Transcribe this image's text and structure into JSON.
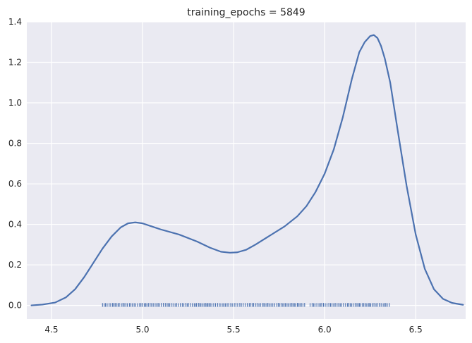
{
  "chart_data": {
    "type": "line",
    "title": "training_epochs = 5849",
    "xlabel": "",
    "ylabel": "",
    "xlim": [
      4.3645,
      6.7742
    ],
    "ylim": [
      -0.0675,
      1.4
    ],
    "xticks": [
      "4.5",
      "5.0",
      "5.5",
      "6.0",
      "6.5"
    ],
    "xtick_values": [
      4.5,
      5.0,
      5.5,
      6.0,
      6.5
    ],
    "yticks": [
      "0.0",
      "0.2",
      "0.4",
      "0.6",
      "0.8",
      "1.0",
      "1.2",
      "1.4"
    ],
    "ytick_values": [
      0.0,
      0.2,
      0.4,
      0.6,
      0.8,
      1.0,
      1.2,
      1.4
    ],
    "grid": true,
    "background_color": "#eaeaf2",
    "grid_color": "#ffffff",
    "series": [
      {
        "color": "#4c72b0",
        "x": [
          4.39,
          4.45,
          4.52,
          4.58,
          4.63,
          4.68,
          4.73,
          4.78,
          4.83,
          4.88,
          4.92,
          4.96,
          5.0,
          5.05,
          5.1,
          5.2,
          5.3,
          5.37,
          5.43,
          5.48,
          5.52,
          5.57,
          5.62,
          5.7,
          5.78,
          5.85,
          5.9,
          5.95,
          6.0,
          6.05,
          6.1,
          6.15,
          6.19,
          6.22,
          6.25,
          6.27,
          6.29,
          6.31,
          6.33,
          6.36,
          6.4,
          6.45,
          6.5,
          6.55,
          6.6,
          6.65,
          6.7,
          6.76
        ],
        "y": [
          0.0,
          0.004,
          0.014,
          0.04,
          0.08,
          0.14,
          0.21,
          0.28,
          0.34,
          0.385,
          0.405,
          0.41,
          0.405,
          0.39,
          0.375,
          0.35,
          0.315,
          0.285,
          0.265,
          0.26,
          0.262,
          0.275,
          0.3,
          0.345,
          0.39,
          0.44,
          0.49,
          0.56,
          0.65,
          0.77,
          0.93,
          1.12,
          1.25,
          1.3,
          1.33,
          1.335,
          1.32,
          1.28,
          1.22,
          1.1,
          0.87,
          0.59,
          0.35,
          0.18,
          0.08,
          0.032,
          0.012,
          0.003
        ]
      }
    ],
    "rug": {
      "color": "#4c72b0",
      "y": 0.0,
      "segments": [
        [
          4.78,
          5.9
        ],
        [
          5.92,
          6.36
        ]
      ]
    }
  }
}
